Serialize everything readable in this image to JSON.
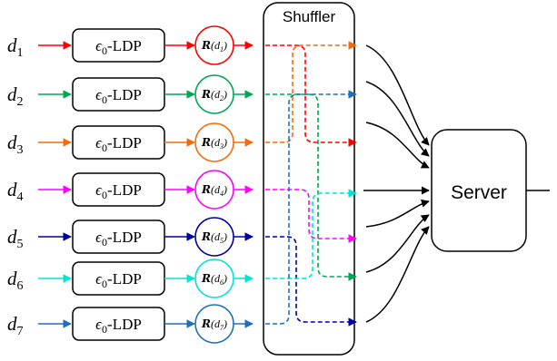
{
  "shuffler": {
    "label": "Shuffler"
  },
  "server": {
    "label": "Server"
  },
  "ldp": {
    "epsilon": "ϵ",
    "subscript": "0",
    "suffix": "-LDP"
  },
  "rows": [
    {
      "d_sym": "d",
      "d_sub": "1",
      "color": "#ff0000",
      "r_sym": "R",
      "r_arg": "(d",
      "r_sub": "1",
      "r_close": ")"
    },
    {
      "d_sym": "d",
      "d_sub": "2",
      "color": "#00a651",
      "r_sym": "R",
      "r_arg": "(d",
      "r_sub": "2",
      "r_close": ")"
    },
    {
      "d_sym": "d",
      "d_sub": "3",
      "color": "#f26c0d",
      "r_sym": "R",
      "r_arg": "(d",
      "r_sub": "3",
      "r_close": ")"
    },
    {
      "d_sym": "d",
      "d_sub": "4",
      "color": "#ff00ff",
      "r_sym": "R",
      "r_arg": "(d",
      "r_sub": "4",
      "r_close": ")"
    },
    {
      "d_sym": "d",
      "d_sub": "5",
      "color": "#0000a0",
      "r_sym": "R",
      "r_arg": "(d",
      "r_sub": "5",
      "r_close": ")"
    },
    {
      "d_sym": "d",
      "d_sub": "6",
      "color": "#00e5d0",
      "r_sym": "R",
      "r_arg": "(d",
      "r_sub": "6",
      "r_close": ")"
    },
    {
      "d_sym": "d",
      "d_sub": "7",
      "color": "#1f6fb8",
      "r_sym": "R",
      "r_arg": "(d",
      "r_sub": "7",
      "r_close": ")"
    }
  ],
  "shuffle_map": [
    2,
    5,
    0,
    4,
    6,
    3,
    1
  ]
}
